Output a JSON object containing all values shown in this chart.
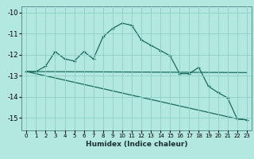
{
  "xlabel": "Humidex (Indice chaleur)",
  "bg_color": "#b3e8e0",
  "grid_color": "#8ecfc8",
  "line_color": "#1a6b5e",
  "xlim": [
    -0.5,
    23.5
  ],
  "ylim": [
    -15.6,
    -9.7
  ],
  "yticks": [
    -15,
    -14,
    -13,
    -12,
    -11,
    -10
  ],
  "xticks": [
    0,
    1,
    2,
    3,
    4,
    5,
    6,
    7,
    8,
    9,
    10,
    11,
    12,
    13,
    14,
    15,
    16,
    17,
    18,
    19,
    20,
    21,
    22,
    23
  ],
  "line1_x": [
    0,
    1,
    2,
    3,
    4,
    5,
    6,
    7,
    8,
    9,
    10,
    11,
    12,
    13,
    14,
    15,
    16,
    17,
    18,
    19,
    20,
    21,
    22,
    23
  ],
  "line1_y": [
    -12.8,
    -12.8,
    -12.55,
    -11.85,
    -12.2,
    -12.3,
    -11.85,
    -12.2,
    -11.15,
    -10.75,
    -10.5,
    -10.6,
    -11.3,
    -11.55,
    -11.8,
    -12.05,
    -12.9,
    -12.9,
    -12.6,
    -13.5,
    -13.8,
    -14.05,
    -15.05,
    -15.1
  ],
  "line2_x": [
    0,
    23
  ],
  "line2_y": [
    -12.8,
    -12.85
  ],
  "line3_x": [
    0,
    22,
    23
  ],
  "line3_y": [
    -12.8,
    -15.05,
    -15.1
  ]
}
